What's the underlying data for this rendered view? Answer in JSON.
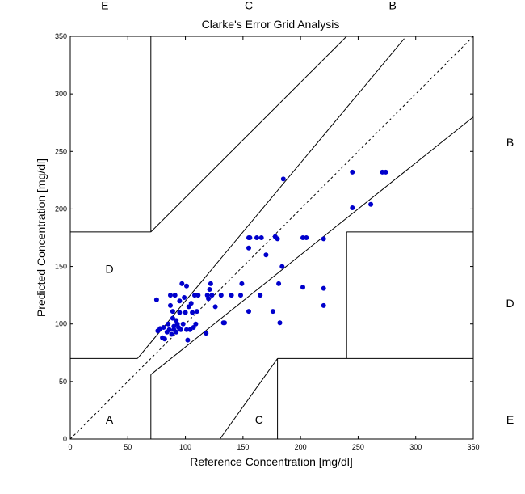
{
  "chart_data": {
    "type": "scatter",
    "title": "Clarke's Error Grid Analysis",
    "xlabel": "Reference Concentration [mg/dl]",
    "ylabel": "Predicted Concentration [mg/dl]",
    "xlim": [
      0,
      350
    ],
    "ylim": [
      0,
      350
    ],
    "xticks": [
      "0",
      "50",
      "100",
      "150",
      "200",
      "250",
      "300",
      "350"
    ],
    "yticks": [
      "0",
      "50",
      "100",
      "150",
      "200",
      "250",
      "300",
      "350"
    ],
    "grid": false,
    "legend": "none",
    "marker_color": "#0000cc",
    "zone_labels": [
      {
        "text": "E",
        "x": 30,
        "y": 377
      },
      {
        "text": "C",
        "x": 155,
        "y": 377
      },
      {
        "text": "B",
        "x": 280,
        "y": 377
      },
      {
        "text": "B",
        "x": 382,
        "y": 258
      },
      {
        "text": "D",
        "x": 34,
        "y": 148
      },
      {
        "text": "D",
        "x": 382,
        "y": 118
      },
      {
        "text": "A",
        "x": 34,
        "y": 17
      },
      {
        "text": "C",
        "x": 164,
        "y": 17
      },
      {
        "text": "E",
        "x": 382,
        "y": 17
      }
    ],
    "boundary_lines": [
      {
        "style": "dashed",
        "points": [
          [
            0,
            0
          ],
          [
            350,
            350
          ]
        ]
      },
      {
        "style": "solid",
        "points": [
          [
            70,
            0
          ],
          [
            70,
            56
          ]
        ]
      },
      {
        "style": "solid",
        "points": [
          [
            70,
            56
          ],
          [
            350,
            280
          ]
        ]
      },
      {
        "style": "solid",
        "points": [
          [
            0,
            70
          ],
          [
            58.33,
            70
          ]
        ]
      },
      {
        "style": "solid",
        "points": [
          [
            58.33,
            70
          ],
          [
            70,
            84
          ]
        ]
      },
      {
        "style": "solid",
        "points": [
          [
            70,
            84
          ],
          [
            290,
            348
          ]
        ]
      },
      {
        "style": "solid",
        "points": [
          [
            70,
            180
          ],
          [
            70,
            350
          ]
        ]
      },
      {
        "style": "solid",
        "points": [
          [
            0,
            180
          ],
          [
            70,
            180
          ]
        ]
      },
      {
        "style": "solid",
        "points": [
          [
            70,
            180
          ],
          [
            240,
            350
          ]
        ]
      },
      {
        "style": "solid",
        "points": [
          [
            130,
            0
          ],
          [
            180,
            70
          ]
        ]
      },
      {
        "style": "solid",
        "points": [
          [
            180,
            0
          ],
          [
            180,
            70
          ]
        ]
      },
      {
        "style": "solid",
        "points": [
          [
            180,
            70
          ],
          [
            350,
            70
          ]
        ]
      },
      {
        "style": "solid",
        "points": [
          [
            240,
            70
          ],
          [
            240,
            180
          ]
        ]
      },
      {
        "style": "solid",
        "points": [
          [
            240,
            180
          ],
          [
            350,
            180
          ]
        ]
      }
    ],
    "points": [
      [
        75,
        121
      ],
      [
        76,
        94
      ],
      [
        78,
        96
      ],
      [
        80,
        88
      ],
      [
        81,
        97
      ],
      [
        82,
        87
      ],
      [
        84,
        93
      ],
      [
        85,
        100
      ],
      [
        86,
        95
      ],
      [
        87,
        116
      ],
      [
        87,
        125
      ],
      [
        88,
        91
      ],
      [
        89,
        111
      ],
      [
        89,
        105
      ],
      [
        90,
        95
      ],
      [
        90,
        98
      ],
      [
        91,
        125
      ],
      [
        92,
        93
      ],
      [
        92,
        103
      ],
      [
        93,
        100
      ],
      [
        94,
        97
      ],
      [
        95,
        110
      ],
      [
        95,
        120
      ],
      [
        96,
        95
      ],
      [
        97,
        135
      ],
      [
        98,
        100
      ],
      [
        99,
        123
      ],
      [
        100,
        110
      ],
      [
        101,
        95
      ],
      [
        101,
        133
      ],
      [
        102,
        86
      ],
      [
        103,
        115
      ],
      [
        104,
        95
      ],
      [
        105,
        118
      ],
      [
        106,
        110
      ],
      [
        107,
        97
      ],
      [
        108,
        125
      ],
      [
        109,
        100
      ],
      [
        110,
        111
      ],
      [
        111,
        125
      ],
      [
        118,
        92
      ],
      [
        119,
        125
      ],
      [
        120,
        122
      ],
      [
        121,
        130
      ],
      [
        122,
        135
      ],
      [
        123,
        125
      ],
      [
        126,
        115
      ],
      [
        131,
        125
      ],
      [
        133,
        101
      ],
      [
        134,
        101
      ],
      [
        140,
        125
      ],
      [
        148,
        125
      ],
      [
        149,
        135
      ],
      [
        155,
        111
      ],
      [
        155,
        166
      ],
      [
        155,
        175
      ],
      [
        156,
        175
      ],
      [
        162,
        175
      ],
      [
        165,
        125
      ],
      [
        166,
        175
      ],
      [
        170,
        160
      ],
      [
        176,
        111
      ],
      [
        178,
        176
      ],
      [
        180,
        174
      ],
      [
        181,
        135
      ],
      [
        182,
        101
      ],
      [
        184,
        150
      ],
      [
        185,
        226
      ],
      [
        202,
        132
      ],
      [
        202,
        175
      ],
      [
        205,
        175
      ],
      [
        220,
        174
      ],
      [
        220,
        116
      ],
      [
        220,
        131
      ],
      [
        245,
        232
      ],
      [
        245,
        201
      ],
      [
        261,
        204
      ],
      [
        271,
        232
      ],
      [
        274,
        232
      ]
    ]
  }
}
